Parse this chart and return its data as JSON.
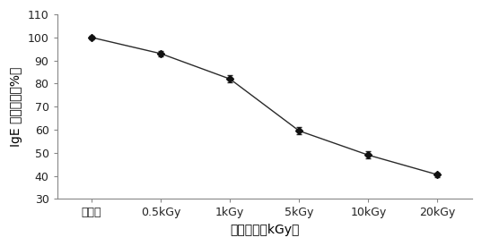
{
  "x_labels": [
    "未处理",
    "0.5kGy",
    "1kGy",
    "5kGy",
    "10kGy",
    "20kGy"
  ],
  "x_positions": [
    0,
    1,
    2,
    3,
    4,
    5
  ],
  "y_values": [
    100,
    93,
    82,
    59.5,
    49,
    40.5
  ],
  "y_errors": [
    0.8,
    1.2,
    1.5,
    1.5,
    1.5,
    1.0
  ],
  "ylim": [
    30,
    110
  ],
  "yticks": [
    30,
    40,
    50,
    60,
    70,
    80,
    90,
    100,
    110
  ],
  "xlabel": "辐照计量（kGy）",
  "ylabel": "IgE 结合能力（%）",
  "line_color": "#2a2a2a",
  "marker": "D",
  "marker_size": 4.5,
  "marker_color": "#111111",
  "capsize": 2.5,
  "elinewidth": 0.8,
  "linewidth": 1.0,
  "background_color": "#ffffff",
  "tick_fontsize": 9,
  "label_fontsize": 10,
  "spine_color": "#888888"
}
